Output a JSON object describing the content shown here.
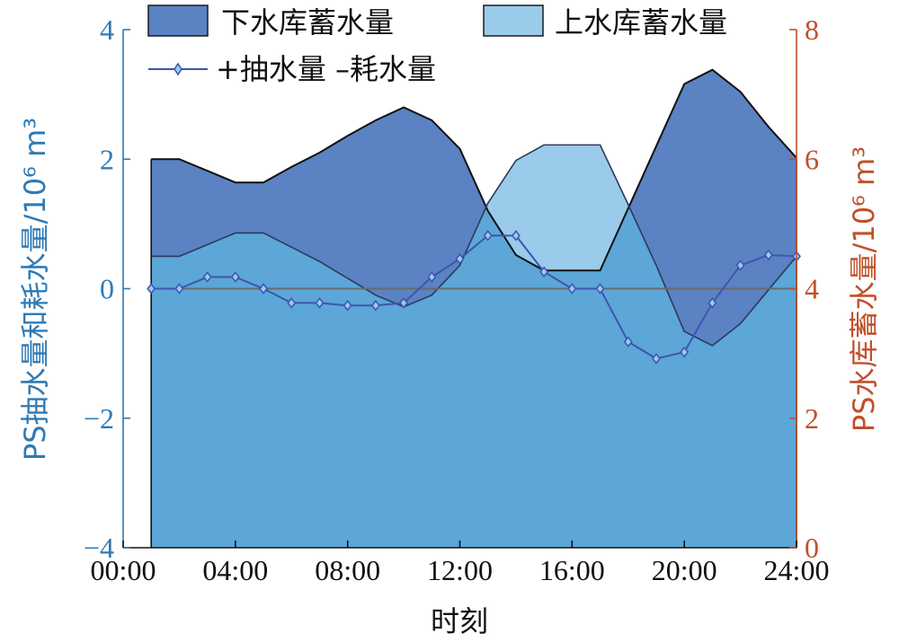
{
  "chart_data": {
    "type": "area",
    "x_label": "时刻",
    "x_ticks": [
      "00:00",
      "04:00",
      "08:00",
      "12:00",
      "16:00",
      "20:00",
      "24:00"
    ],
    "x_range_hours": [
      0,
      24
    ],
    "y_left_label": "PS抽水量和耗水量/10⁶ m³",
    "y_left_range": [
      -4,
      4
    ],
    "y_left_ticks": [
      "-4",
      "-2",
      "0",
      "2",
      "4"
    ],
    "y_right_label": "PS水库蓄水量/10⁶ m³",
    "y_right_range": [
      0,
      8
    ],
    "y_right_ticks": [
      "0",
      "2",
      "4",
      "6",
      "8"
    ],
    "colors": {
      "left_axis": "#2e7ab5",
      "right_axis": "#c0502a",
      "lower_reservoir": "#5b82c2",
      "upper_reservoir": "#9bcbea",
      "overlap": "#5ca6d8",
      "pump_line": "#3d55b0"
    },
    "legend": {
      "lower_reservoir": "下水库蓄水量",
      "upper_reservoir": "上水库蓄水量",
      "pump_line": "+抽水量 –耗水量"
    },
    "series": [
      {
        "name": "下水库蓄水量",
        "axis": "right",
        "x": [
          1,
          2,
          3,
          4,
          5,
          6,
          7,
          8,
          9,
          10,
          11,
          12,
          13,
          14,
          15,
          16,
          17,
          18,
          19,
          20,
          21,
          22,
          23,
          24
        ],
        "values": [
          6.0,
          6.0,
          5.82,
          5.64,
          5.64,
          5.88,
          6.1,
          6.36,
          6.6,
          6.8,
          6.6,
          6.16,
          5.2,
          4.52,
          4.28,
          4.28,
          4.28,
          5.24,
          6.2,
          7.16,
          7.38,
          7.04,
          6.5,
          6.02
        ]
      },
      {
        "name": "上水库蓄水量",
        "axis": "right",
        "x": [
          1,
          2,
          3,
          4,
          5,
          6,
          7,
          8,
          9,
          10,
          11,
          12,
          13,
          14,
          15,
          16,
          17,
          18,
          19,
          20,
          21,
          22,
          23,
          24
        ],
        "values": [
          4.5,
          4.5,
          4.68,
          4.86,
          4.86,
          4.64,
          4.42,
          4.16,
          3.9,
          3.72,
          3.9,
          4.36,
          5.32,
          5.98,
          6.22,
          6.22,
          6.22,
          5.3,
          4.36,
          3.34,
          3.12,
          3.46,
          3.98,
          4.5
        ]
      },
      {
        "name": "+抽水量 –耗水量",
        "axis": "left",
        "x": [
          1,
          2,
          3,
          4,
          5,
          6,
          7,
          8,
          9,
          10,
          11,
          12,
          13,
          14,
          15,
          16,
          17,
          18,
          19,
          20,
          21,
          22,
          23,
          24
        ],
        "values": [
          0,
          0,
          0.18,
          0.18,
          0,
          -0.22,
          -0.22,
          -0.26,
          -0.26,
          -0.22,
          0.18,
          0.46,
          0.82,
          0.82,
          0.26,
          0,
          0,
          -0.82,
          -1.08,
          -0.98,
          -0.22,
          0.36,
          0.52,
          0.5
        ]
      }
    ]
  }
}
